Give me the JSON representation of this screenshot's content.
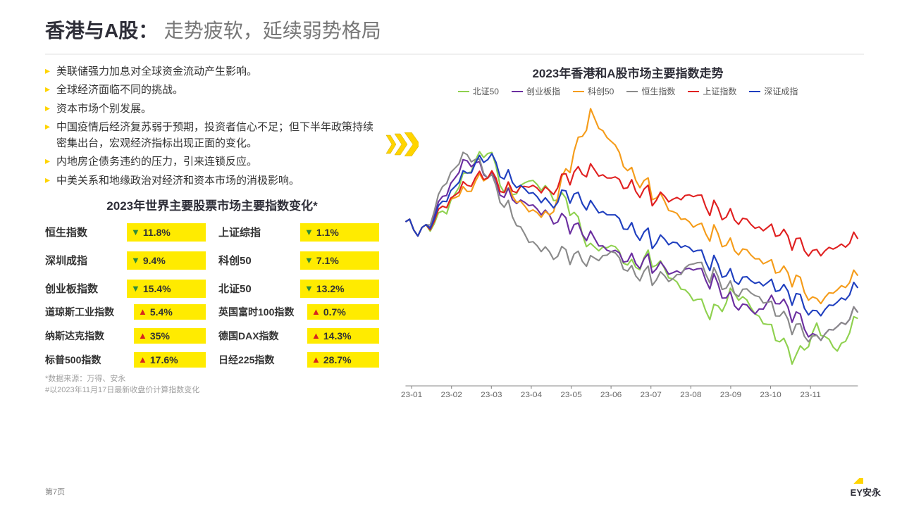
{
  "title": {
    "main": "香港与A股：",
    "sub": "走势疲软，延续弱势格局"
  },
  "bullets": [
    "美联储强力加息对全球资金流动产生影响。",
    "全球经济面临不同的挑战。",
    "资本市场个别发展。",
    "中国疫情后经济复苏弱于预期，投资者信心不足；但下半年政策持续密集出台，宏观经济指标出现正面的变化。",
    "内地房企债务违约的压力，引来连锁反应。",
    "中美关系和地缘政治对经济和资本市场的消极影响。"
  ],
  "indices_heading": "2023年世界主要股票市场主要指数变化*",
  "pill_bg": "#ffeb00",
  "pill_bg_mid": "#ffe400",
  "indices_top_left": [
    {
      "label": "恒生指数",
      "dir": "down",
      "value": "11.8%"
    },
    {
      "label": "深圳成指",
      "dir": "down",
      "value": "9.4%"
    },
    {
      "label": "创业板指数",
      "dir": "down",
      "value": "15.4%"
    }
  ],
  "indices_top_right": [
    {
      "label": "上证综指",
      "dir": "down",
      "value": "1.1%"
    },
    {
      "label": "科创50",
      "dir": "down",
      "value": "7.1%"
    },
    {
      "label": "北证50",
      "dir": "down",
      "value": "13.2%"
    }
  ],
  "indices_bot_left": [
    {
      "label": "道琼斯工业指数",
      "dir": "up",
      "value": "5.4%"
    },
    {
      "label": "纳斯达克指数",
      "dir": "up",
      "value": "35%"
    },
    {
      "label": "标普500指数",
      "dir": "up",
      "value": "17.6%"
    }
  ],
  "indices_bot_right": [
    {
      "label": "英国富时100指数",
      "dir": "up",
      "value": "0.7%"
    },
    {
      "label": "德国DAX指数",
      "dir": "up",
      "value": "14.3%"
    },
    {
      "label": "日经225指数",
      "dir": "up",
      "value": "28.7%"
    }
  ],
  "footnotes": [
    "*数据来源：万得、安永",
    "#以2023年11月17日最新收盘价计算指数变化"
  ],
  "chart": {
    "title": "2023年香港和A股市场主要指数走势",
    "x_labels": [
      "23-01",
      "23-02",
      "23-03",
      "23-04",
      "23-05",
      "23-06",
      "23-07",
      "23-08",
      "23-09",
      "23-10",
      "23-11"
    ],
    "x_label_fontsize": 11,
    "x_label_color": "#666666",
    "axis_color": "#888888",
    "grid": false,
    "ylim": [
      -26,
      20
    ],
    "legend": [
      {
        "name": "北证50",
        "color": "#8fd14f"
      },
      {
        "name": "创业板指",
        "color": "#6b2fa0"
      },
      {
        "name": "科创50",
        "color": "#f59c1a"
      },
      {
        "name": "恒生指数",
        "color": "#8a8a8a"
      },
      {
        "name": "上证指数",
        "color": "#e02020"
      },
      {
        "name": "深证成指",
        "color": "#1f3fbf"
      }
    ],
    "line_width": 2,
    "series": {
      "北证50": [
        0,
        3,
        9,
        12,
        5,
        8,
        6,
        3,
        -4,
        -3,
        -6,
        -5,
        -9,
        -12,
        -14,
        -10,
        -14,
        -18,
        -22,
        -16,
        -20,
        -15
      ],
      "创业板指": [
        0,
        6,
        11,
        8,
        5,
        4,
        2,
        0,
        -2,
        -4,
        -5,
        -6,
        -8,
        -7,
        -9,
        -12,
        -14,
        -12,
        -15,
        -18,
        -16,
        -14
      ],
      "科创50": [
        0,
        4,
        6,
        8,
        6,
        3,
        2,
        10,
        18,
        14,
        9,
        6,
        2,
        0,
        -1,
        -3,
        -5,
        -7,
        -9,
        -12,
        -10,
        -8
      ],
      "恒生指数": [
        0,
        8,
        12,
        8,
        3,
        -2,
        -4,
        -5,
        -6,
        -4,
        -7,
        -8,
        -9,
        -6,
        -8,
        -10,
        -11,
        -14,
        -17,
        -18,
        -16,
        -14
      ],
      "上证指数": [
        0,
        4,
        7,
        8,
        6,
        7,
        6,
        8,
        9,
        8,
        7,
        5,
        4,
        5,
        3,
        2,
        0,
        -1,
        -3,
        -4,
        -3,
        -2
      ],
      "深证成指": [
        0,
        5,
        9,
        11,
        8,
        6,
        4,
        5,
        3,
        2,
        0,
        -2,
        -3,
        -4,
        -6,
        -8,
        -9,
        -10,
        -12,
        -14,
        -12,
        -10
      ]
    }
  },
  "page_number": "第7页",
  "logo_text": "EY安永"
}
